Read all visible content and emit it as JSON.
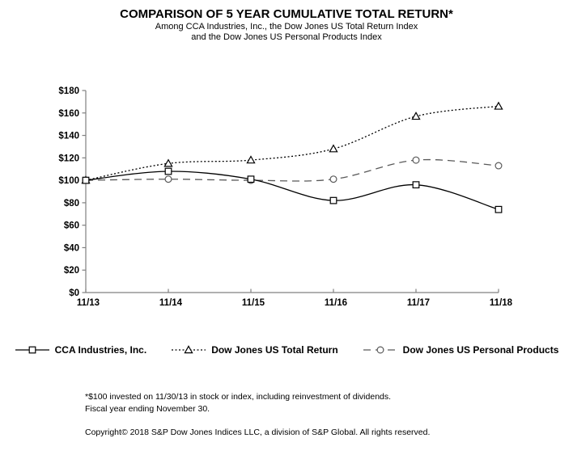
{
  "chart_data": {
    "type": "line",
    "title": "COMPARISON OF 5 YEAR CUMULATIVE TOTAL RETURN*",
    "subtitle_lines": [
      "Among CCA Industries, Inc., the Dow Jones US Total Return Index",
      "and the Dow Jones US Personal Products Index"
    ],
    "categories": [
      "11/13",
      "11/14",
      "11/15",
      "11/16",
      "11/17",
      "11/18"
    ],
    "series": [
      {
        "name": "Dow Jones US Total Return",
        "values": [
          100,
          115,
          118,
          128,
          157,
          166
        ],
        "line": "dotted",
        "marker": "triangle",
        "color": "#000000"
      },
      {
        "name": "Dow Jones US Personal Products",
        "values": [
          100,
          101,
          100,
          101,
          118,
          113
        ],
        "line": "dashed",
        "marker": "circle",
        "color": "#595959"
      },
      {
        "name": "CCA Industries, Inc.",
        "values": [
          100,
          108,
          101,
          82,
          96,
          74
        ],
        "line": "solid",
        "marker": "square",
        "color": "#000000"
      }
    ],
    "legend_order": [
      2,
      0,
      1
    ],
    "ylim": [
      0,
      180
    ],
    "ytick_step": 20,
    "ytick_labels": [
      "$0",
      "$20",
      "$40",
      "$60",
      "$80",
      "$100",
      "$120",
      "$140",
      "$160",
      "$180"
    ],
    "grid": false,
    "legend_position": "bottom",
    "axis_color": "#808080",
    "text_color": "#000000"
  },
  "footnotes": {
    "line1": "*$100 invested on 11/30/13 in stock or index, including reinvestment of dividends.",
    "line2": "Fiscal year ending November 30.",
    "copyright": "Copyright© 2018 S&P Dow Jones Indices LLC, a division of S&P Global.  All rights reserved."
  }
}
